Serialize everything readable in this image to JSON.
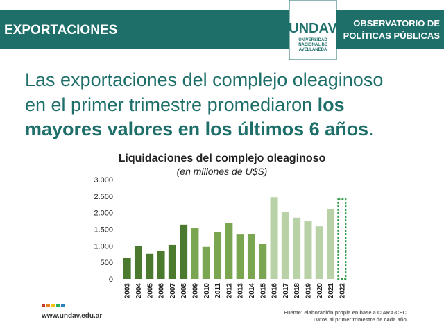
{
  "header": {
    "section": "EXPORTACIONES",
    "logo_name": "UNDAV",
    "logo_lines": [
      "UNIVERSIDAD",
      "NACIONAL DE",
      "AVELLANEDA"
    ],
    "observatory": [
      "OBSERVATORIO DE",
      "POLÍTICAS PÚBLICAS"
    ]
  },
  "headline": {
    "line1": "Las exportaciones del complejo oleaginoso",
    "line2": "en el primer trimestre promediaron ",
    "line2_bold": "los",
    "line3_bold": "mayores valores en los últimos 6 años",
    "line3_end": "."
  },
  "chart_data": {
    "type": "bar",
    "title": "Liquidaciones del complejo oleaginoso",
    "subtitle": "(en millones de U$S)",
    "categories": [
      "2003",
      "2004",
      "2005",
      "2006",
      "2007",
      "2008",
      "2009",
      "2010",
      "2011",
      "2012",
      "2013",
      "2014",
      "2015",
      "2016",
      "2017",
      "2018",
      "2019",
      "2020",
      "2021",
      "2022"
    ],
    "values": [
      630,
      990,
      760,
      840,
      1030,
      1640,
      1550,
      970,
      1410,
      1680,
      1340,
      1360,
      1070,
      2470,
      2030,
      1850,
      1740,
      1590,
      2120,
      2410
    ],
    "colors": [
      "#4b7a2f",
      "#4b7a2f",
      "#4b7a2f",
      "#4b7a2f",
      "#4b7a2f",
      "#4b7a2f",
      "#7aa651",
      "#7aa651",
      "#7aa651",
      "#7aa651",
      "#7aa651",
      "#7aa651",
      "#7aa651",
      "#b8d1a6",
      "#b8d1a6",
      "#b8d1a6",
      "#b8d1a6",
      "#b8d1a6",
      "#b8d1a6",
      "#2f9a4a"
    ],
    "bar_styles": [
      "solid",
      "solid",
      "solid",
      "solid",
      "solid",
      "solid",
      "solid",
      "solid",
      "solid",
      "solid",
      "solid",
      "solid",
      "solid",
      "solid",
      "solid",
      "solid",
      "solid",
      "solid",
      "solid",
      "dashed"
    ],
    "ylim": [
      0,
      3000
    ],
    "yticks": [
      0,
      500,
      {
        "value": 1000,
        "label": "1.000"
      },
      {
        "value": 1500,
        "label": "1.500"
      },
      {
        "value": 2000,
        "label": "2.000"
      },
      {
        "value": 2500,
        "label": "2.500"
      },
      {
        "value": 3000,
        "label": "3.000"
      }
    ],
    "grid": false
  },
  "footer": {
    "url": "www.undav.edu.ar",
    "source": [
      "Fuente: elaboración propia en base a CIARA-CEC.",
      "Datos al primer trimestre de cada año."
    ]
  }
}
